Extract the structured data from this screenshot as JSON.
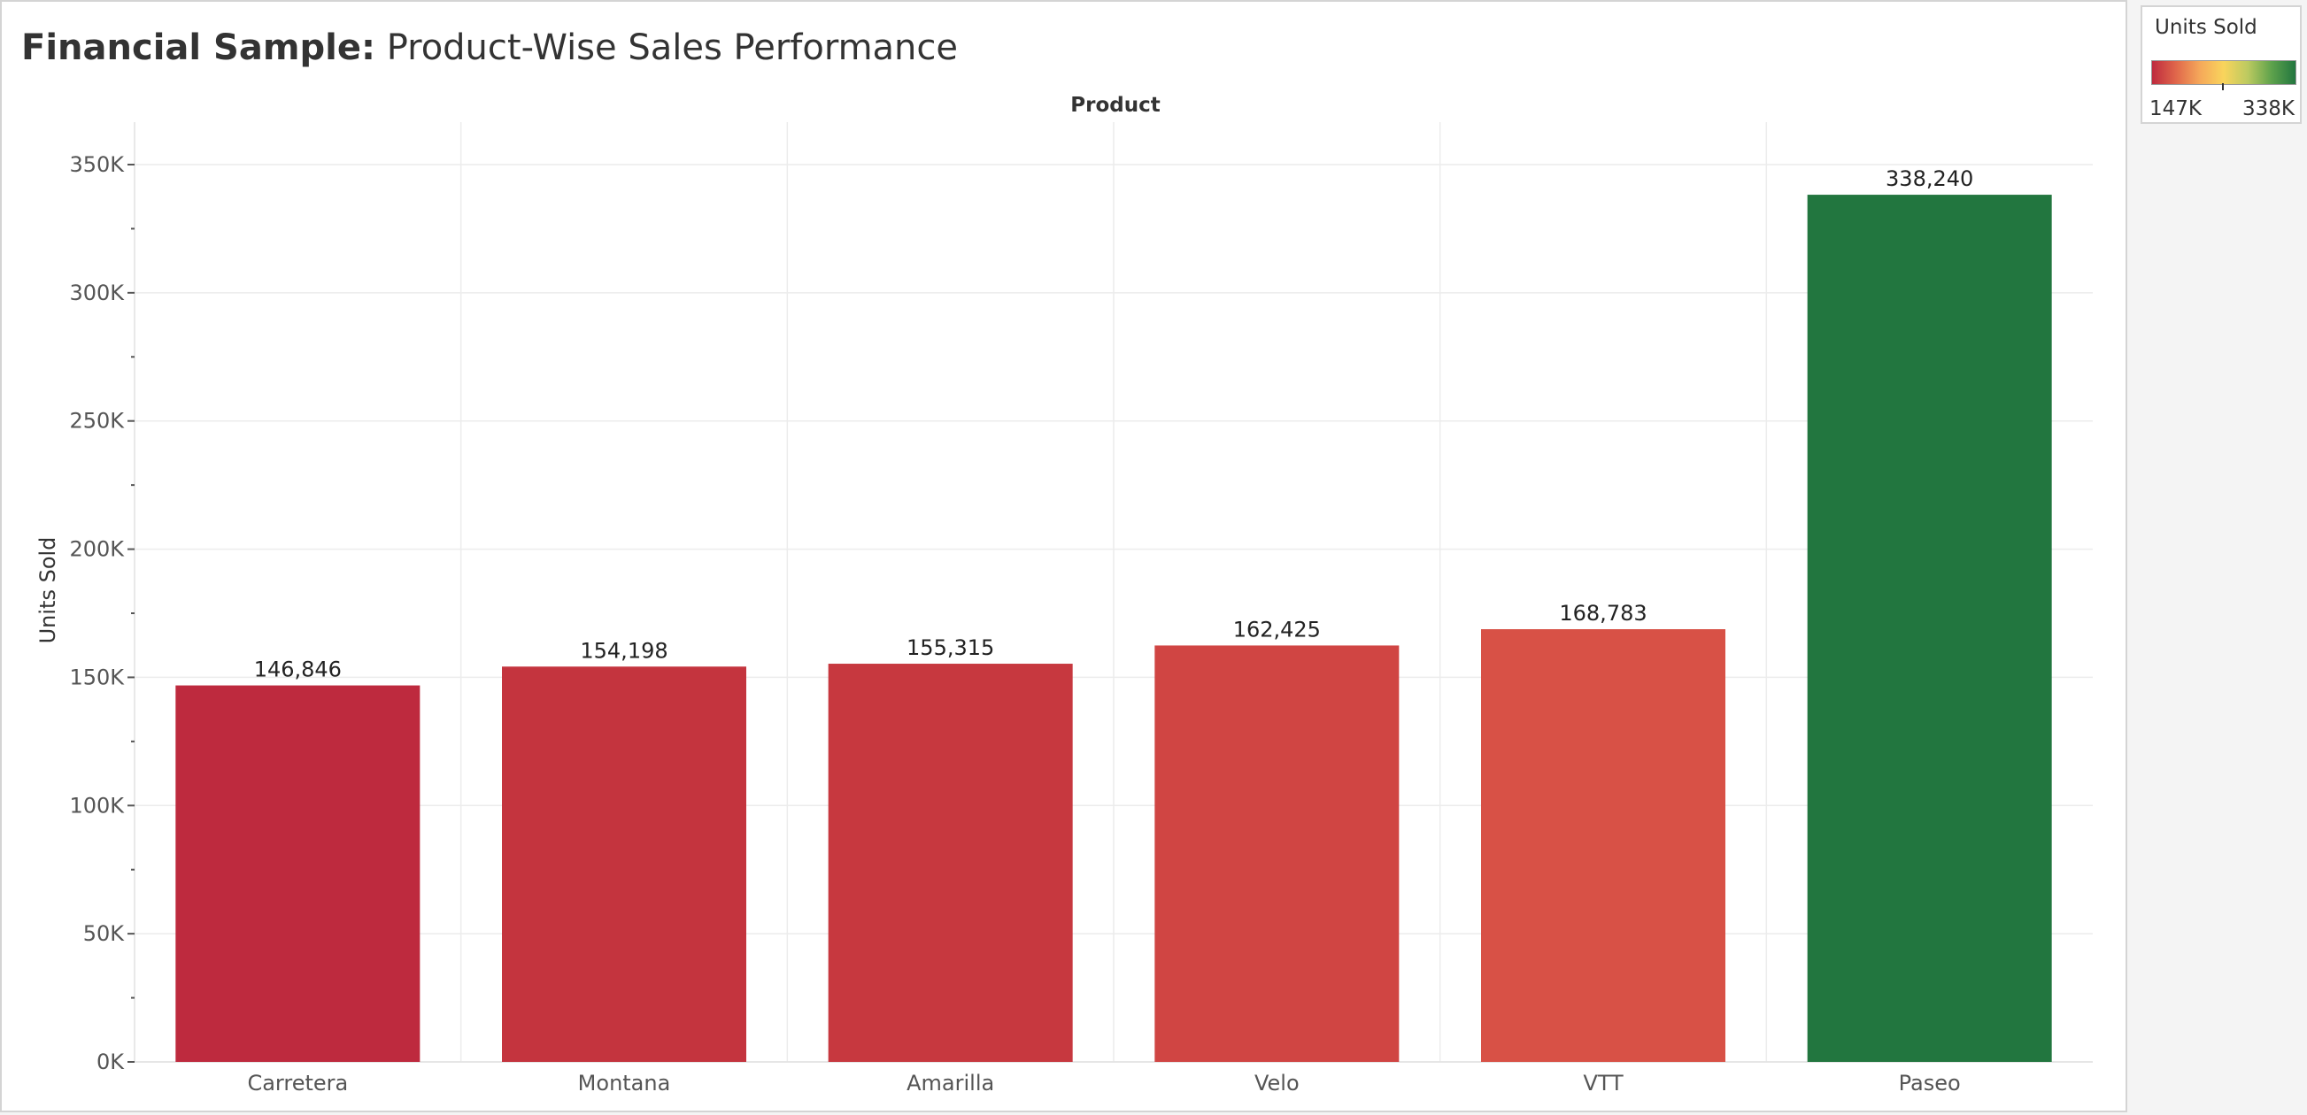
{
  "title": {
    "prefix": "Financial Sample:",
    "rest": "Product-Wise Sales Performance"
  },
  "chart_data": {
    "type": "bar",
    "column_header": "Product",
    "ylabel": "Units Sold",
    "ylim": [
      0,
      350000
    ],
    "y_ticks": [
      {
        "value": 0,
        "label": "0K"
      },
      {
        "value": 50000,
        "label": "50K"
      },
      {
        "value": 100000,
        "label": "100K"
      },
      {
        "value": 150000,
        "label": "150K"
      },
      {
        "value": 200000,
        "label": "200K"
      },
      {
        "value": 250000,
        "label": "250K"
      },
      {
        "value": 300000,
        "label": "300K"
      },
      {
        "value": 350000,
        "label": "350K"
      }
    ],
    "categories": [
      "Carretera",
      "Montana",
      "Amarilla",
      "Velo",
      "VTT",
      "Paseo"
    ],
    "values": [
      146846,
      154198,
      155315,
      162425,
      168783,
      338240
    ],
    "value_labels": [
      "146,846",
      "154,198",
      "155,315",
      "162,425",
      "168,783",
      "338,240"
    ],
    "bar_colors": [
      "#be2a3e",
      "#c4343e",
      "#c7383f",
      "#d04543",
      "#d85146",
      "#22763f"
    ],
    "grid": true
  },
  "legend": {
    "title": "Units Sold",
    "min_label": "147K",
    "max_label": "338K",
    "gradient_colors": [
      "#be2a3e",
      "#e0674b",
      "#f5a85a",
      "#f9d45c",
      "#bcca60",
      "#5ea24c",
      "#22763f"
    ]
  }
}
